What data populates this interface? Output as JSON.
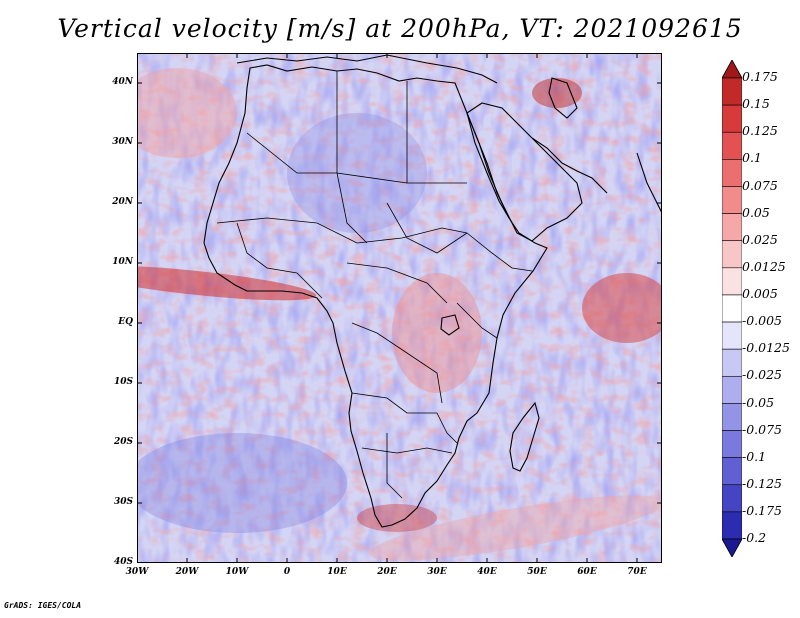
{
  "title": "Vertical velocity [m/s] at 200hPa, VT: 2021092615",
  "credit": "GrADS: IGES/COLA",
  "map": {
    "lon_range": [
      -30,
      75
    ],
    "lat_range": [
      -40,
      45
    ],
    "lat_labels": [
      "40N",
      "30N",
      "20N",
      "10N",
      "EQ",
      "10S",
      "20S",
      "30S",
      "40S"
    ],
    "lat_values": [
      40,
      30,
      20,
      10,
      0,
      -10,
      -20,
      -30,
      -40
    ],
    "lon_labels": [
      "30W",
      "20W",
      "10W",
      "0",
      "10E",
      "20E",
      "30E",
      "40E",
      "50E",
      "60E",
      "70E"
    ],
    "lon_values": [
      -30,
      -20,
      -10,
      0,
      10,
      20,
      30,
      40,
      50,
      60,
      70
    ],
    "field": "vertical velocity",
    "units": "m/s",
    "level": "200hPa"
  },
  "colorbar": {
    "labels": [
      "0.175",
      "0.15",
      "0.125",
      "0.1",
      "0.075",
      "0.05",
      "0.025",
      "0.0125",
      "0.005",
      "-0.005",
      "-0.0125",
      "-0.025",
      "-0.05",
      "-0.075",
      "-0.1",
      "-0.125",
      "-0.175",
      "-0.2"
    ],
    "colors": [
      "#a01818",
      "#c22a2a",
      "#d63a3a",
      "#e25252",
      "#eb6f6f",
      "#f08c8c",
      "#f4a8a8",
      "#f8c6c6",
      "#fbe2e2",
      "#ffffff",
      "#e4e4fa",
      "#c8c8f4",
      "#aeaeee",
      "#9494e6",
      "#7a7ade",
      "#6060d2",
      "#4545c4",
      "#2c2cb0",
      "#1a1a95"
    ]
  }
}
